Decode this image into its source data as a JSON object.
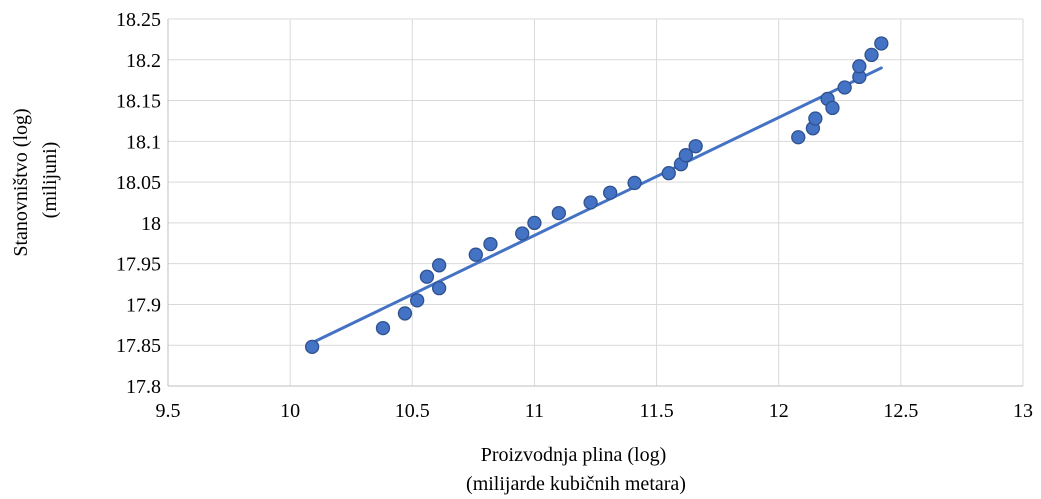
{
  "chart_data": {
    "type": "scatter",
    "title": "",
    "xlabel_lines": [
      "Proizvodnja plina (log)",
      "(milijarde kubičnih metara)"
    ],
    "ylabel_lines": [
      "Stanovništvo (log)",
      "(milijuni)"
    ],
    "xlim": [
      9.5,
      13
    ],
    "ylim": [
      17.8,
      18.25
    ],
    "x_ticks": [
      "9.5",
      "10",
      "10.5",
      "11",
      "11.5",
      "12",
      "12.5",
      "13"
    ],
    "y_ticks": [
      "17.8",
      "17.85",
      "17.9",
      "17.95",
      "18",
      "18.05",
      "18.1",
      "18.15",
      "18.2",
      "18.25"
    ],
    "grid": true,
    "legend": "none",
    "marker_color": "#4472c4",
    "marker_edge_color": "#2f528f",
    "trendline_color": "#4472c4",
    "points": [
      {
        "x": 10.09,
        "y": 17.848
      },
      {
        "x": 10.38,
        "y": 17.871
      },
      {
        "x": 10.47,
        "y": 17.889
      },
      {
        "x": 10.52,
        "y": 17.905
      },
      {
        "x": 10.56,
        "y": 17.934
      },
      {
        "x": 10.61,
        "y": 17.92
      },
      {
        "x": 10.61,
        "y": 17.948
      },
      {
        "x": 10.76,
        "y": 17.961
      },
      {
        "x": 10.82,
        "y": 17.974
      },
      {
        "x": 10.95,
        "y": 17.987
      },
      {
        "x": 11.0,
        "y": 18.0
      },
      {
        "x": 11.1,
        "y": 18.012
      },
      {
        "x": 11.23,
        "y": 18.025
      },
      {
        "x": 11.31,
        "y": 18.037
      },
      {
        "x": 11.41,
        "y": 18.049
      },
      {
        "x": 11.55,
        "y": 18.061
      },
      {
        "x": 11.6,
        "y": 18.072
      },
      {
        "x": 11.62,
        "y": 18.083
      },
      {
        "x": 11.66,
        "y": 18.094
      },
      {
        "x": 12.08,
        "y": 18.105
      },
      {
        "x": 12.14,
        "y": 18.116
      },
      {
        "x": 12.15,
        "y": 18.128
      },
      {
        "x": 12.2,
        "y": 18.152
      },
      {
        "x": 12.22,
        "y": 18.141
      },
      {
        "x": 12.27,
        "y": 18.166
      },
      {
        "x": 12.33,
        "y": 18.179
      },
      {
        "x": 12.33,
        "y": 18.192
      },
      {
        "x": 12.38,
        "y": 18.206
      },
      {
        "x": 12.42,
        "y": 18.22
      }
    ],
    "trendline": {
      "type": "linear",
      "x": [
        10.09,
        12.42
      ],
      "y": [
        17.853,
        18.19
      ]
    }
  }
}
